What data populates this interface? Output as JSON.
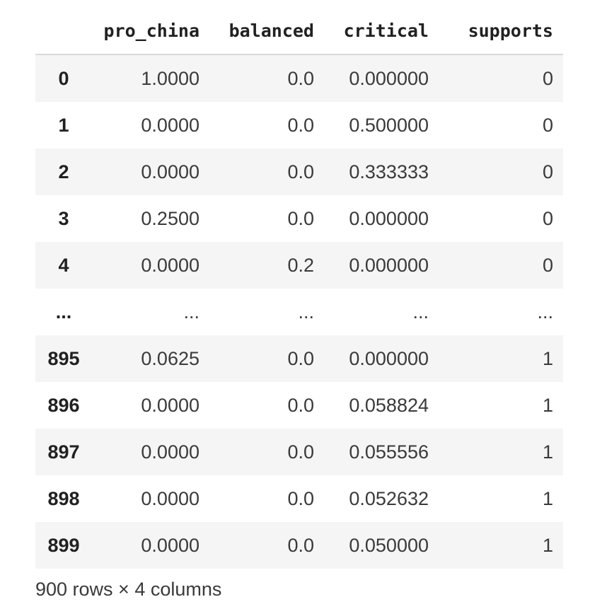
{
  "table": {
    "columns": [
      "",
      "pro_china",
      "balanced",
      "critical",
      "supports"
    ],
    "rows": [
      {
        "index": "0",
        "pro_china": "1.0000",
        "balanced": "0.0",
        "critical": "0.000000",
        "supports": "0"
      },
      {
        "index": "1",
        "pro_china": "0.0000",
        "balanced": "0.0",
        "critical": "0.500000",
        "supports": "0"
      },
      {
        "index": "2",
        "pro_china": "0.0000",
        "balanced": "0.0",
        "critical": "0.333333",
        "supports": "0"
      },
      {
        "index": "3",
        "pro_china": "0.2500",
        "balanced": "0.0",
        "critical": "0.000000",
        "supports": "0"
      },
      {
        "index": "4",
        "pro_china": "0.0000",
        "balanced": "0.2",
        "critical": "0.000000",
        "supports": "0"
      },
      {
        "index": "...",
        "pro_china": "...",
        "balanced": "...",
        "critical": "...",
        "supports": "..."
      },
      {
        "index": "895",
        "pro_china": "0.0625",
        "balanced": "0.0",
        "critical": "0.000000",
        "supports": "1"
      },
      {
        "index": "896",
        "pro_china": "0.0000",
        "balanced": "0.0",
        "critical": "0.058824",
        "supports": "1"
      },
      {
        "index": "897",
        "pro_china": "0.0000",
        "balanced": "0.0",
        "critical": "0.055556",
        "supports": "1"
      },
      {
        "index": "898",
        "pro_china": "0.0000",
        "balanced": "0.0",
        "critical": "0.052632",
        "supports": "1"
      },
      {
        "index": "899",
        "pro_china": "0.0000",
        "balanced": "0.0",
        "critical": "0.050000",
        "supports": "1"
      }
    ]
  },
  "footer": {
    "shape_text": "900 rows × 4 columns"
  }
}
